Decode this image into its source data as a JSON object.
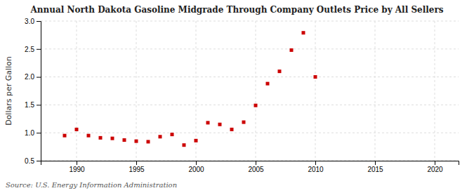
{
  "chart_data": {
    "type": "scatter",
    "title": "Annual North Dakota Gasoline Midgrade Through Company Outlets Price by All Sellers",
    "ylabel": "Dollars per Gallon",
    "source": "Source: U.S. Energy Information Administration",
    "x": [
      1989,
      1990,
      1991,
      1992,
      1993,
      1994,
      1995,
      1996,
      1997,
      1998,
      1999,
      2000,
      2001,
      2002,
      2003,
      2004,
      2005,
      2006,
      2007,
      2008,
      2009,
      2010
    ],
    "values": [
      0.95,
      1.06,
      0.95,
      0.91,
      0.9,
      0.87,
      0.85,
      0.84,
      0.93,
      0.97,
      0.78,
      0.86,
      1.18,
      1.15,
      1.06,
      1.19,
      1.49,
      1.88,
      2.1,
      2.48,
      2.79,
      2.0
    ],
    "color": "#cc0000",
    "marker": "square",
    "xlim": [
      1987,
      2022
    ],
    "ylim": [
      0.5,
      3.0
    ],
    "xticks": [
      1990,
      1995,
      2000,
      2005,
      2010,
      2015,
      2020
    ],
    "yticks": [
      0.5,
      {
        "value": 1.0,
        "label": "1.0"
      },
      1.5,
      {
        "value": 2.0,
        "label": "2.0"
      },
      2.5,
      {
        "value": 3.0,
        "label": "3.0"
      }
    ],
    "grid": true
  }
}
